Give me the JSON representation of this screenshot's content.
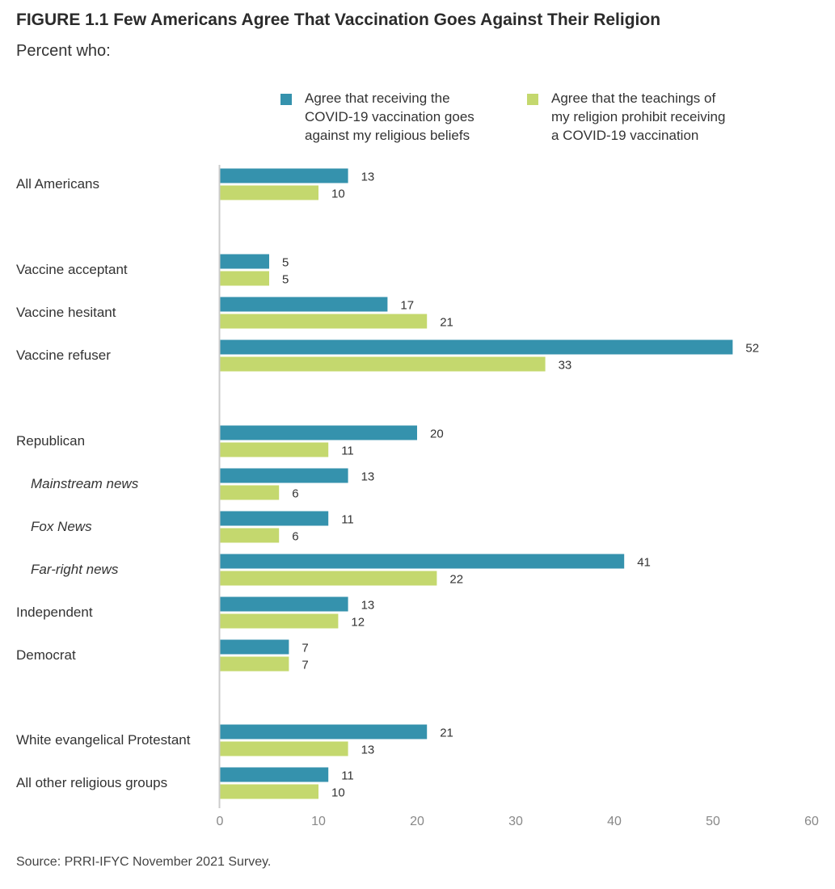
{
  "header": {
    "title": "FIGURE 1.1  Few Americans Agree That Vaccination Goes Against Their Religion",
    "subtitle": "Percent who:"
  },
  "legend": [
    {
      "lines": [
        "Agree that receiving the",
        "COVID-19 vaccination goes",
        "against my religious beliefs"
      ],
      "color": "#3592ad"
    },
    {
      "lines": [
        "Agree that the teachings of",
        "my religion prohibit receiving",
        "a COVID-19 vaccination"
      ],
      "color": "#c4d86e"
    }
  ],
  "footer": {
    "source": "Source: PRRI-IFYC November 2021 Survey."
  },
  "chart_data": {
    "type": "bar",
    "orientation": "horizontal",
    "title": "FIGURE 1.1  Few Americans Agree That Vaccination Goes Against Their Religion",
    "subtitle": "Percent who:",
    "categories": [
      "All Americans",
      "Vaccine acceptant",
      "Vaccine hesitant",
      "Vaccine refuser",
      "Republican",
      "Mainstream news",
      "Fox News",
      "Far-right news",
      "Independent",
      "Democrat",
      "White evangelical Protestant",
      "All other religious groups"
    ],
    "italic_categories": [
      "Mainstream news",
      "Fox News",
      "Far-right news"
    ],
    "series": [
      {
        "name": "Agree that receiving the COVID-19 vaccination goes against my religious beliefs",
        "color": "#3592ad",
        "values": [
          13,
          5,
          17,
          52,
          20,
          13,
          11,
          41,
          13,
          7,
          21,
          11
        ]
      },
      {
        "name": "Agree that the teachings of my religion prohibit receiving a COVID-19 vaccination",
        "color": "#c4d86e",
        "values": [
          10,
          5,
          21,
          33,
          11,
          6,
          6,
          22,
          12,
          7,
          13,
          10
        ]
      }
    ],
    "xlim": [
      0,
      60
    ],
    "xticks": [
      0,
      10,
      20,
      30,
      40,
      50,
      60
    ],
    "grid": false,
    "legend_position": "top"
  }
}
